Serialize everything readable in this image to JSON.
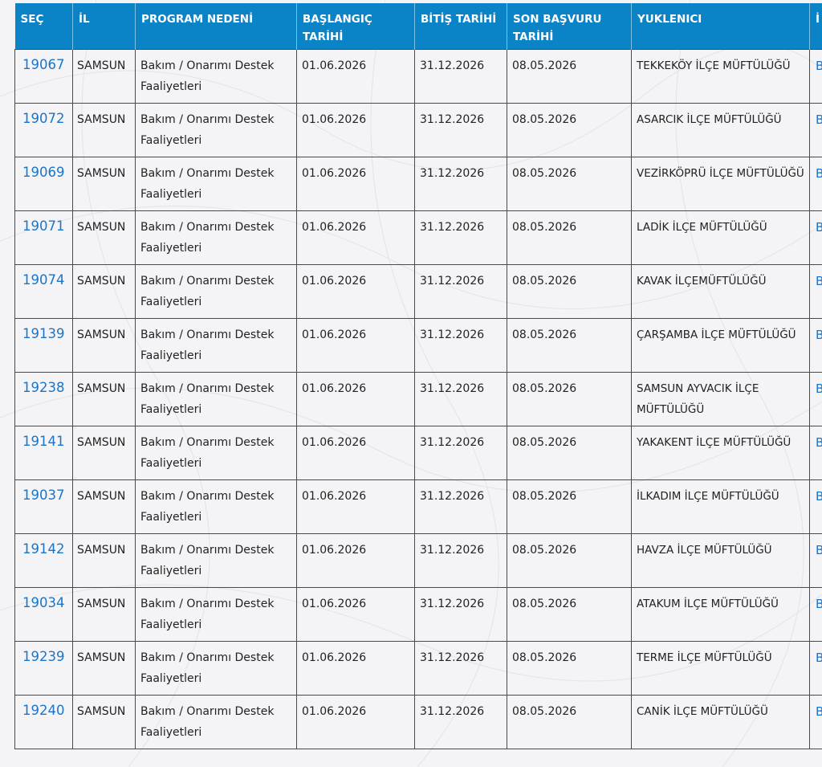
{
  "headers": {
    "sec": "SEÇ",
    "il": "İL",
    "program": "PROGRAM NEDENİ",
    "baslangic": "BAŞLANGIÇ TARİHİ",
    "bitis": "BİTİŞ TARİHİ",
    "son_basvuru": "SON BAŞVURU TARİHİ",
    "yuklenici": "YUKLENICI",
    "cut_col": "İ"
  },
  "rows": [
    {
      "id": "19067",
      "il": "SAMSUN",
      "program": "Bakım / Onarımı Destek Faaliyetleri",
      "baslangic": "01.06.2026",
      "bitis": "31.12.2026",
      "son_basvuru": "08.05.2026",
      "yuklenici": "TEKKEKÖY İLÇE MÜFTÜLÜĞÜ",
      "cut": "B İ"
    },
    {
      "id": "19072",
      "il": "SAMSUN",
      "program": "Bakım / Onarımı Destek Faaliyetleri",
      "baslangic": "01.06.2026",
      "bitis": "31.12.2026",
      "son_basvuru": "08.05.2026",
      "yuklenici": "ASARCIK İLÇE MÜFTÜLÜĞÜ",
      "cut": "B İ"
    },
    {
      "id": "19069",
      "il": "SAMSUN",
      "program": "Bakım / Onarımı Destek Faaliyetleri",
      "baslangic": "01.06.2026",
      "bitis": "31.12.2026",
      "son_basvuru": "08.05.2026",
      "yuklenici": "VEZİRKÖPRÜ İLÇE MÜFTÜLÜĞÜ",
      "cut": "B İ"
    },
    {
      "id": "19071",
      "il": "SAMSUN",
      "program": "Bakım / Onarımı Destek Faaliyetleri",
      "baslangic": "01.06.2026",
      "bitis": "31.12.2026",
      "son_basvuru": "08.05.2026",
      "yuklenici": "LADİK İLÇE MÜFTÜLÜĞÜ",
      "cut": "B İ"
    },
    {
      "id": "19074",
      "il": "SAMSUN",
      "program": "Bakım / Onarımı Destek Faaliyetleri",
      "baslangic": "01.06.2026",
      "bitis": "31.12.2026",
      "son_basvuru": "08.05.2026",
      "yuklenici": "KAVAK İLÇEMÜFTÜLÜĞÜ",
      "cut": "B İ"
    },
    {
      "id": "19139",
      "il": "SAMSUN",
      "program": "Bakım / Onarımı Destek Faaliyetleri",
      "baslangic": "01.06.2026",
      "bitis": "31.12.2026",
      "son_basvuru": "08.05.2026",
      "yuklenici": "ÇARŞAMBA İLÇE MÜFTÜLÜĞÜ",
      "cut": "B İ"
    },
    {
      "id": "19238",
      "il": "SAMSUN",
      "program": "Bakım / Onarımı Destek Faaliyetleri",
      "baslangic": "01.06.2026",
      "bitis": "31.12.2026",
      "son_basvuru": "08.05.2026",
      "yuklenici": "SAMSUN AYVACIK İLÇE MÜFTÜLÜĞÜ",
      "cut": "B İ"
    },
    {
      "id": "19141",
      "il": "SAMSUN",
      "program": "Bakım / Onarımı Destek Faaliyetleri",
      "baslangic": "01.06.2026",
      "bitis": "31.12.2026",
      "son_basvuru": "08.05.2026",
      "yuklenici": "YAKAKENT İLÇE MÜFTÜLÜĞÜ",
      "cut": "B İ"
    },
    {
      "id": "19037",
      "il": "SAMSUN",
      "program": "Bakım / Onarımı Destek Faaliyetleri",
      "baslangic": "01.06.2026",
      "bitis": "31.12.2026",
      "son_basvuru": "08.05.2026",
      "yuklenici": "İLKADIM İLÇE MÜFTÜLÜĞÜ",
      "cut": "B İ"
    },
    {
      "id": "19142",
      "il": "SAMSUN",
      "program": "Bakım / Onarımı Destek Faaliyetleri",
      "baslangic": "01.06.2026",
      "bitis": "31.12.2026",
      "son_basvuru": "08.05.2026",
      "yuklenici": "HAVZA İLÇE MÜFTÜLÜĞÜ",
      "cut": "B İ"
    },
    {
      "id": "19034",
      "il": "SAMSUN",
      "program": "Bakım / Onarımı Destek Faaliyetleri",
      "baslangic": "01.06.2026",
      "bitis": "31.12.2026",
      "son_basvuru": "08.05.2026",
      "yuklenici": "ATAKUM İLÇE MÜFTÜLÜĞÜ",
      "cut": "B İ"
    },
    {
      "id": "19239",
      "il": "SAMSUN",
      "program": "Bakım / Onarımı Destek Faaliyetleri",
      "baslangic": "01.06.2026",
      "bitis": "31.12.2026",
      "son_basvuru": "08.05.2026",
      "yuklenici": "TERME İLÇE MÜFTÜLÜĞÜ",
      "cut": "B İ"
    },
    {
      "id": "19240",
      "il": "SAMSUN",
      "program": "Bakım / Onarımı Destek Faaliyetleri",
      "baslangic": "01.06.2026",
      "bitis": "31.12.2026",
      "son_basvuru": "08.05.2026",
      "yuklenici": "CANİK İLÇE MÜFTÜLÜĞÜ",
      "cut": "B İ"
    }
  ],
  "colors": {
    "header_bg": "#0a84c6",
    "link": "#1a74c8",
    "page_bg": "#f4f4f6"
  }
}
